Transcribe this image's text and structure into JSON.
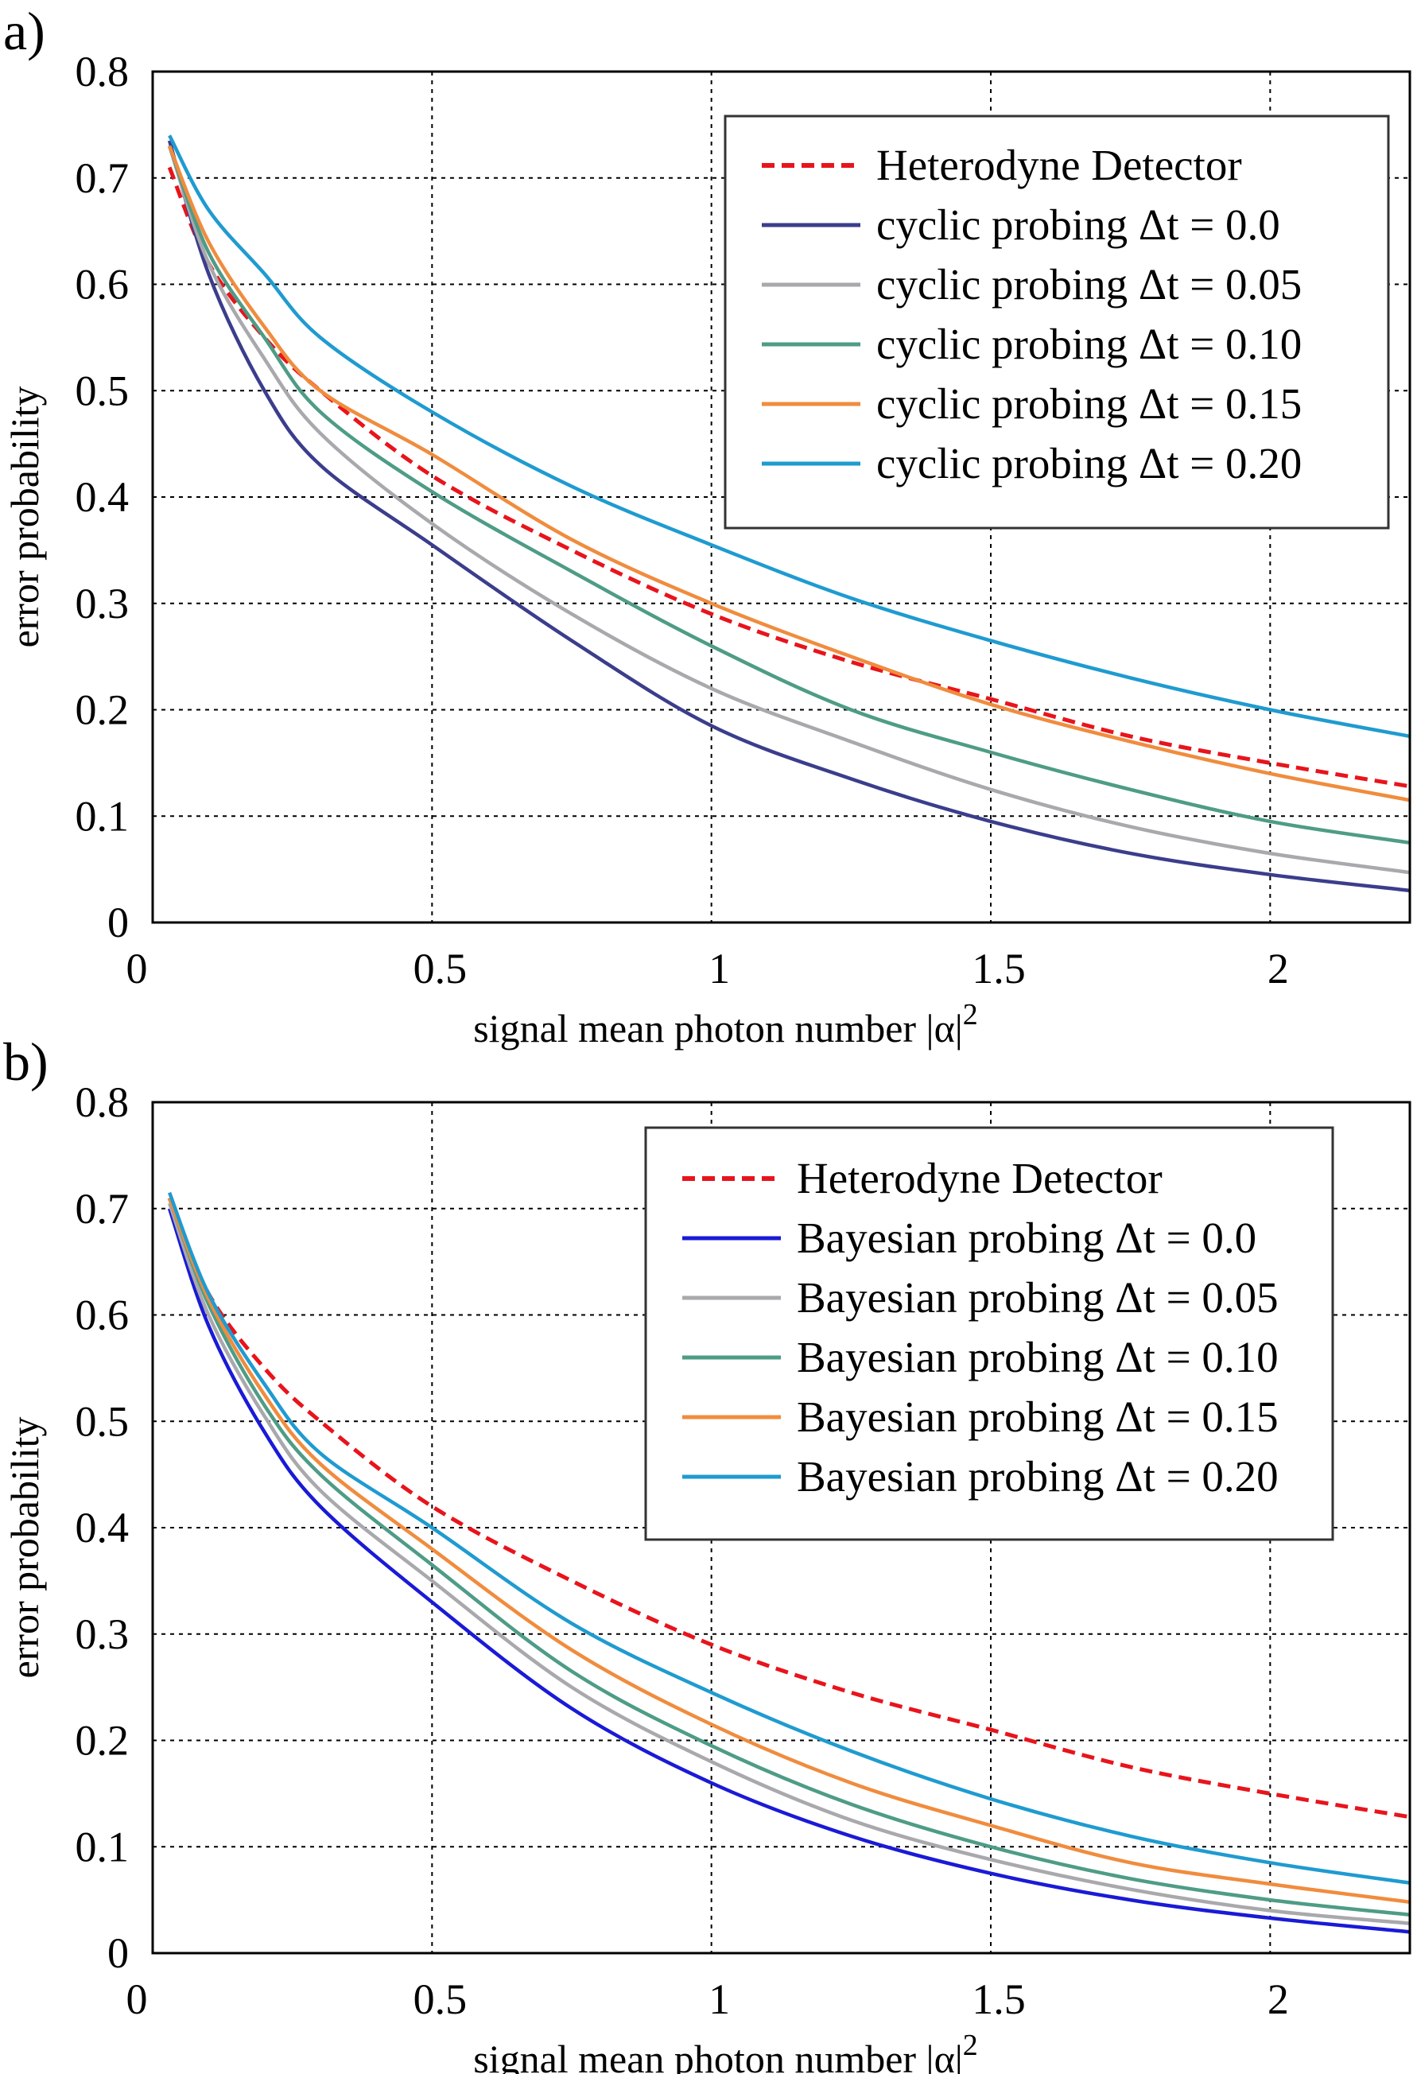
{
  "chart_data": [
    {
      "type": "line",
      "panel_label": "a)",
      "xlabel": "signal mean photon number |α|",
      "xlabel_superscript": "2",
      "ylabel": "error probability",
      "xlim": [
        0,
        2.25
      ],
      "ylim": [
        0,
        0.8
      ],
      "xticks": [
        "0",
        "0.5",
        "1",
        "1.5",
        "2"
      ],
      "yticks": [
        "0",
        "0.1",
        "0.2",
        "0.3",
        "0.4",
        "0.5",
        "0.6",
        "0.7",
        "0.8"
      ],
      "grid": true,
      "legend_position": "top-right",
      "x": [
        0.03,
        0.1,
        0.2,
        0.3,
        0.5,
        0.75,
        1.0,
        1.25,
        1.5,
        1.75,
        2.0,
        2.25
      ],
      "series": [
        {
          "name": "Heterodyne Detector",
          "color": "#e8141c",
          "style": "dashed",
          "values": [
            0.71,
            0.62,
            0.55,
            0.5,
            0.42,
            0.35,
            0.29,
            0.245,
            0.21,
            0.175,
            0.15,
            0.128
          ]
        },
        {
          "name": "cyclic probing Δt = 0.0",
          "color": "#3b3d8c",
          "style": "solid",
          "values": [
            0.735,
            0.61,
            0.5,
            0.43,
            0.355,
            0.265,
            0.185,
            0.135,
            0.095,
            0.065,
            0.045,
            0.03
          ]
        },
        {
          "name": "cyclic probing Δt = 0.05",
          "color": "#a9a9ad",
          "style": "solid",
          "values": [
            0.73,
            0.62,
            0.53,
            0.46,
            0.375,
            0.29,
            0.22,
            0.17,
            0.125,
            0.09,
            0.065,
            0.047
          ]
        },
        {
          "name": "cyclic probing Δt = 0.10",
          "color": "#4e9c86",
          "style": "solid",
          "values": [
            0.73,
            0.63,
            0.55,
            0.48,
            0.405,
            0.33,
            0.26,
            0.2,
            0.16,
            0.125,
            0.095,
            0.075
          ]
        },
        {
          "name": "cyclic probing Δt = 0.15",
          "color": "#f08c3e",
          "style": "solid",
          "values": [
            0.73,
            0.64,
            0.56,
            0.5,
            0.44,
            0.36,
            0.3,
            0.25,
            0.205,
            0.17,
            0.14,
            0.115
          ]
        },
        {
          "name": "cyclic probing Δt = 0.20",
          "color": "#1f9bd0",
          "style": "solid",
          "values": [
            0.74,
            0.67,
            0.61,
            0.55,
            0.48,
            0.41,
            0.355,
            0.305,
            0.265,
            0.23,
            0.2,
            0.175
          ]
        }
      ]
    },
    {
      "type": "line",
      "panel_label": "b)",
      "xlabel": "signal mean photon number |α|",
      "xlabel_superscript": "2",
      "ylabel": "error probability",
      "xlim": [
        0,
        2.25
      ],
      "ylim": [
        0,
        0.8
      ],
      "xticks": [
        "0",
        "0.5",
        "1",
        "1.5",
        "2"
      ],
      "yticks": [
        "0",
        "0.1",
        "0.2",
        "0.3",
        "0.4",
        "0.5",
        "0.6",
        "0.7",
        "0.8"
      ],
      "grid": true,
      "legend_position": "top-right",
      "x": [
        0.03,
        0.1,
        0.2,
        0.3,
        0.5,
        0.75,
        1.0,
        1.25,
        1.5,
        1.75,
        2.0,
        2.25
      ],
      "series": [
        {
          "name": "Heterodyne Detector",
          "color": "#e8141c",
          "style": "dashed",
          "values": [
            0.71,
            0.62,
            0.55,
            0.5,
            0.42,
            0.35,
            0.29,
            0.245,
            0.21,
            0.175,
            0.15,
            0.128
          ]
        },
        {
          "name": "Bayesian probing Δt = 0.0",
          "color": "#1a1ad6",
          "style": "solid",
          "values": [
            0.7,
            0.59,
            0.49,
            0.42,
            0.33,
            0.23,
            0.16,
            0.11,
            0.075,
            0.05,
            0.033,
            0.02
          ]
        },
        {
          "name": "Bayesian probing Δt = 0.05",
          "color": "#a9a9ad",
          "style": "solid",
          "values": [
            0.705,
            0.6,
            0.505,
            0.435,
            0.35,
            0.25,
            0.18,
            0.125,
            0.088,
            0.06,
            0.04,
            0.028
          ]
        },
        {
          "name": "Bayesian probing Δt = 0.10",
          "color": "#4e9c86",
          "style": "solid",
          "values": [
            0.71,
            0.61,
            0.515,
            0.45,
            0.365,
            0.265,
            0.195,
            0.14,
            0.1,
            0.07,
            0.05,
            0.036
          ]
        },
        {
          "name": "Bayesian probing Δt = 0.15",
          "color": "#f08c3e",
          "style": "solid",
          "values": [
            0.71,
            0.615,
            0.525,
            0.46,
            0.38,
            0.285,
            0.215,
            0.16,
            0.12,
            0.085,
            0.065,
            0.048
          ]
        },
        {
          "name": "Bayesian probing Δt = 0.20",
          "color": "#1f9bd0",
          "style": "solid",
          "values": [
            0.715,
            0.62,
            0.535,
            0.47,
            0.4,
            0.31,
            0.245,
            0.19,
            0.145,
            0.11,
            0.085,
            0.066
          ]
        }
      ]
    }
  ]
}
